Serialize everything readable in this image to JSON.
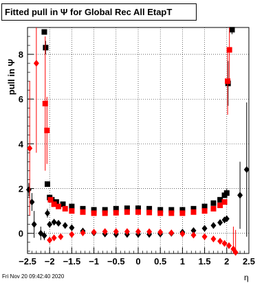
{
  "chart_data": {
    "type": "scatter",
    "title": "Fitted pull in  Ψ  for Global Rec All EtapT",
    "ylabel": "pull in  Ψ",
    "xlabel": "η",
    "xlim": [
      -2.5,
      2.5
    ],
    "ylim": [
      -0.9,
      9.2
    ],
    "xticks": [
      -2.5,
      -2,
      -1.5,
      -1,
      -0.5,
      0,
      0.5,
      1,
      1.5,
      2,
      2.5
    ],
    "xtick_labels": [
      "−2.5",
      "−2",
      "−1.5",
      "−1",
      "−0.5",
      "0",
      "0.5",
      "1",
      "1.5",
      "2",
      "2.5"
    ],
    "yticks": [
      0,
      2,
      4,
      6,
      8
    ],
    "ytick_labels": [
      "0",
      "2",
      "4",
      "6",
      "8"
    ],
    "grid": true,
    "timestamp": "Fri Nov 20 09:42:40 2020",
    "series": [
      {
        "marker": "square",
        "color": "#000000",
        "points": [
          [
            -2.12,
            9.0
          ],
          [
            -2.09,
            8.3
          ],
          [
            -2.05,
            2.2
          ],
          [
            -2.0,
            1.6
          ],
          [
            -1.95,
            1.5
          ],
          [
            -1.85,
            1.4
          ],
          [
            -1.7,
            1.3
          ],
          [
            -1.5,
            1.2
          ],
          [
            -1.25,
            1.1
          ],
          [
            -1.0,
            1.05
          ],
          [
            -0.75,
            1.05
          ],
          [
            -0.5,
            1.1
          ],
          [
            -0.25,
            1.12
          ],
          [
            0.0,
            1.12
          ],
          [
            0.25,
            1.1
          ],
          [
            0.5,
            1.05
          ],
          [
            0.75,
            1.05
          ],
          [
            1.0,
            1.05
          ],
          [
            1.25,
            1.1
          ],
          [
            1.5,
            1.2
          ],
          [
            1.7,
            1.35
          ],
          [
            1.85,
            1.5
          ],
          [
            1.95,
            1.7
          ],
          [
            2.0,
            1.8
          ],
          [
            2.03,
            6.7
          ],
          [
            2.12,
            9.1
          ]
        ],
        "errors": [
          0.1,
          0.3,
          0.1,
          0.05,
          0.05,
          0.05,
          0.05,
          0.05,
          0.05,
          0.05,
          0.05,
          0.05,
          0.05,
          0.05,
          0.05,
          0.05,
          0.05,
          0.05,
          0.05,
          0.05,
          0.05,
          0.05,
          0.1,
          0.2,
          1.0,
          0.2
        ]
      },
      {
        "marker": "square",
        "color": "#ff0000",
        "points": [
          [
            -2.1,
            5.8
          ],
          [
            -2.06,
            4.6
          ],
          [
            -1.98,
            1.5
          ],
          [
            -1.9,
            1.3
          ],
          [
            -1.8,
            1.2
          ],
          [
            -1.65,
            1.1
          ],
          [
            -1.5,
            1.0
          ],
          [
            -1.25,
            0.95
          ],
          [
            -1.0,
            0.9
          ],
          [
            -0.75,
            0.9
          ],
          [
            -0.5,
            0.92
          ],
          [
            -0.25,
            0.95
          ],
          [
            0.0,
            0.95
          ],
          [
            0.25,
            0.93
          ],
          [
            0.5,
            0.9
          ],
          [
            0.75,
            0.9
          ],
          [
            1.0,
            0.9
          ],
          [
            1.25,
            0.95
          ],
          [
            1.5,
            1.0
          ],
          [
            1.7,
            1.1
          ],
          [
            1.85,
            1.25
          ],
          [
            1.95,
            1.4
          ],
          [
            2.02,
            6.8
          ],
          [
            2.06,
            8.2
          ]
        ],
        "errors": [
          3.0,
          1.5,
          0.1,
          0.05,
          0.05,
          0.05,
          0.05,
          0.05,
          0.05,
          0.05,
          0.05,
          0.05,
          0.05,
          0.05,
          0.05,
          0.05,
          0.05,
          0.05,
          0.05,
          0.05,
          0.05,
          0.1,
          1.5,
          1.5
        ]
      },
      {
        "marker": "diamond",
        "color": "#000000",
        "points": [
          [
            -2.47,
            1.95
          ],
          [
            -2.4,
            1.4
          ],
          [
            -2.35,
            0.4
          ],
          [
            -2.2,
            0.0
          ],
          [
            -2.12,
            -0.1
          ],
          [
            -2.05,
            0.9
          ],
          [
            -2.0,
            0.4
          ],
          [
            -1.9,
            0.5
          ],
          [
            -1.8,
            0.45
          ],
          [
            -1.65,
            0.35
          ],
          [
            -1.5,
            0.25
          ],
          [
            -1.25,
            0.1
          ],
          [
            -1.0,
            0.02
          ],
          [
            -0.75,
            -0.03
          ],
          [
            -0.5,
            -0.05
          ],
          [
            -0.25,
            -0.05
          ],
          [
            0.0,
            -0.05
          ],
          [
            0.25,
            -0.05
          ],
          [
            0.5,
            -0.03
          ],
          [
            0.75,
            0.0
          ],
          [
            1.0,
            0.05
          ],
          [
            1.25,
            0.12
          ],
          [
            1.5,
            0.22
          ],
          [
            1.7,
            0.35
          ],
          [
            1.85,
            0.48
          ],
          [
            1.95,
            0.6
          ],
          [
            2.0,
            0.65
          ],
          [
            2.3,
            1.7
          ],
          [
            2.45,
            2.85
          ]
        ],
        "errors": [
          0.3,
          0.4,
          0.6,
          0.3,
          0.2,
          0.2,
          0.05,
          0.05,
          0.05,
          0.05,
          0.05,
          0.05,
          0.05,
          0.05,
          0.05,
          0.05,
          0.05,
          0.05,
          0.05,
          0.05,
          0.05,
          0.05,
          0.05,
          0.05,
          0.05,
          0.05,
          0.05,
          1.5,
          3.0
        ]
      },
      {
        "marker": "diamond",
        "color": "#ff0000",
        "points": [
          [
            -2.45,
            3.8
          ],
          [
            -2.3,
            7.6
          ],
          [
            -2.0,
            -0.3
          ],
          [
            -1.9,
            -0.2
          ],
          [
            -1.75,
            -0.15
          ],
          [
            -1.5,
            -0.05
          ],
          [
            -1.25,
            0.02
          ],
          [
            -1.0,
            0.05
          ],
          [
            -0.75,
            0.08
          ],
          [
            -0.5,
            0.08
          ],
          [
            -0.25,
            0.08
          ],
          [
            0.0,
            0.08
          ],
          [
            0.25,
            0.07
          ],
          [
            0.5,
            0.05
          ],
          [
            0.75,
            0.02
          ],
          [
            1.0,
            -0.02
          ],
          [
            1.25,
            -0.08
          ],
          [
            1.5,
            -0.15
          ],
          [
            1.7,
            -0.25
          ],
          [
            1.85,
            -0.35
          ],
          [
            1.95,
            -0.45
          ],
          [
            2.05,
            -0.55
          ],
          [
            2.15,
            -0.7
          ],
          [
            2.2,
            -0.85
          ]
        ],
        "errors": [
          3.0,
          4.0,
          0.1,
          0.05,
          0.05,
          0.05,
          0.05,
          0.05,
          0.05,
          0.05,
          0.05,
          0.05,
          0.05,
          0.05,
          0.05,
          0.05,
          0.05,
          0.05,
          0.05,
          0.05,
          0.05,
          0.1,
          1.0,
          1.0
        ]
      }
    ]
  }
}
